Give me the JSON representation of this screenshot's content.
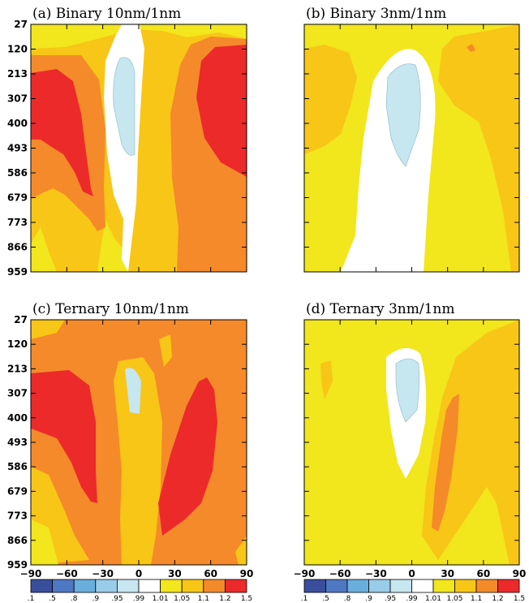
{
  "chart_data": [
    {
      "type": "contour",
      "title": "(a) Binary 10nm/1nm",
      "y_tick_labels": [
        "27",
        "120",
        "213",
        "307",
        "400",
        "493",
        "586",
        "679",
        "773",
        "866",
        "959"
      ],
      "x_tick_labels": []
    },
    {
      "type": "contour",
      "title": "(b) Binary 3nm/1nm",
      "y_tick_labels": [],
      "x_tick_labels": []
    },
    {
      "type": "contour",
      "title": "(c) Ternary 10nm/1nm",
      "y_tick_labels": [
        "27",
        "120",
        "213",
        "307",
        "400",
        "493",
        "586",
        "679",
        "773",
        "866",
        "959"
      ],
      "x_tick_labels": [
        "−90",
        "−60",
        "−30",
        "0",
        "30",
        "60",
        "90"
      ]
    },
    {
      "type": "contour",
      "title": "(d) Ternary 3nm/1nm",
      "y_tick_labels": [],
      "x_tick_labels": [
        "−90",
        "−60",
        "−30",
        "0",
        "30",
        "60",
        "90"
      ]
    }
  ],
  "colorbar": {
    "levels": [
      ".1",
      ".5",
      ".8",
      ".9",
      ".95",
      ".99",
      "1.01",
      "1.05",
      "1.1",
      "1.2",
      "1.5"
    ],
    "colors": [
      "#3a4f9c",
      "#4f78c2",
      "#6aaede",
      "#98cce8",
      "#c6e6f0",
      "#ffffff",
      "#f2e61c",
      "#f8c616",
      "#f58a2a",
      "#ec2a2a"
    ]
  }
}
